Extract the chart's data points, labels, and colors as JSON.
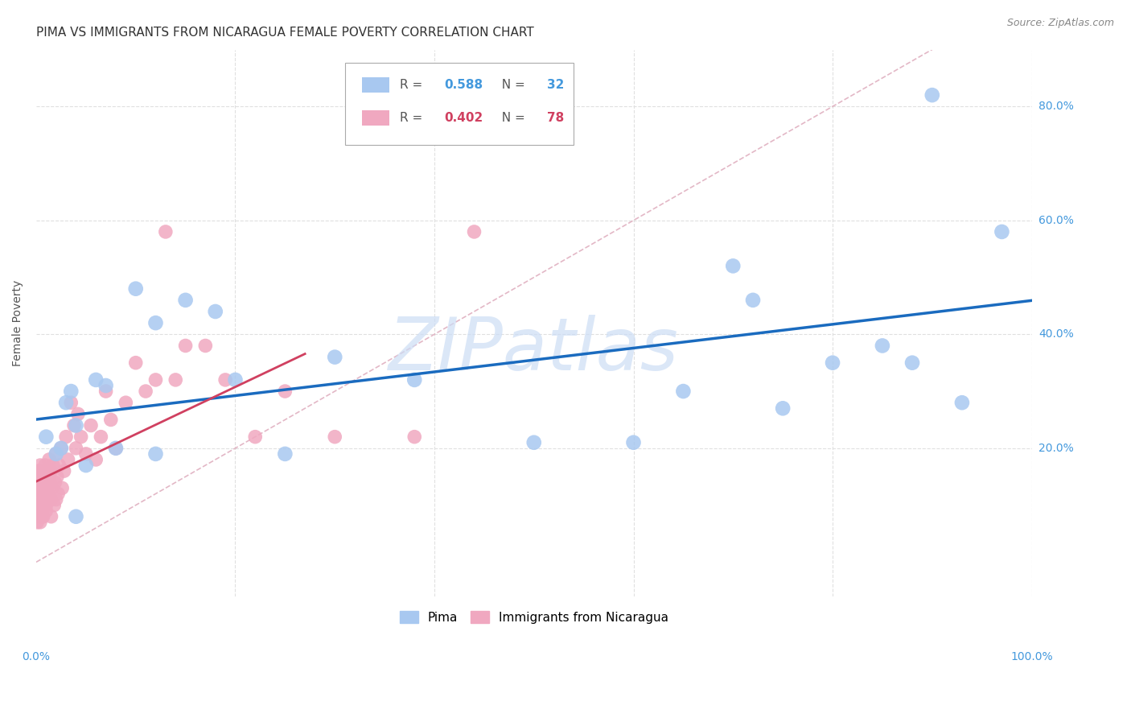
{
  "title": "PIMA VS IMMIGRANTS FROM NICARAGUA FEMALE POVERTY CORRELATION CHART",
  "source": "Source: ZipAtlas.com",
  "ylabel": "Female Poverty",
  "xlim": [
    0,
    1.0
  ],
  "ylim": [
    -0.06,
    0.9
  ],
  "pima_color": "#a8c8f0",
  "nicaragua_color": "#f0a8c0",
  "pima_line_color": "#1a6bbf",
  "nicaragua_line_color": "#d04060",
  "diagonal_color": "#e0b0c0",
  "pima_R": "0.588",
  "pima_N": "32",
  "nicaragua_R": "0.402",
  "nicaragua_N": "78",
  "pima_x": [
    0.01,
    0.02,
    0.025,
    0.03,
    0.035,
    0.04,
    0.05,
    0.06,
    0.07,
    0.08,
    0.1,
    0.12,
    0.15,
    0.18,
    0.2,
    0.12,
    0.25,
    0.3,
    0.38,
    0.5,
    0.6,
    0.65,
    0.7,
    0.72,
    0.75,
    0.8,
    0.85,
    0.88,
    0.9,
    0.93,
    0.97,
    0.04
  ],
  "pima_y": [
    0.22,
    0.19,
    0.2,
    0.28,
    0.3,
    0.24,
    0.17,
    0.32,
    0.31,
    0.2,
    0.48,
    0.19,
    0.46,
    0.44,
    0.32,
    0.42,
    0.19,
    0.36,
    0.32,
    0.21,
    0.21,
    0.3,
    0.52,
    0.46,
    0.27,
    0.35,
    0.38,
    0.35,
    0.82,
    0.28,
    0.58,
    0.08
  ],
  "nic_x": [
    0.001,
    0.002,
    0.002,
    0.003,
    0.003,
    0.004,
    0.004,
    0.004,
    0.005,
    0.005,
    0.005,
    0.006,
    0.006,
    0.007,
    0.007,
    0.007,
    0.008,
    0.008,
    0.008,
    0.009,
    0.009,
    0.01,
    0.01,
    0.01,
    0.012,
    0.012,
    0.013,
    0.014,
    0.015,
    0.015,
    0.016,
    0.017,
    0.018,
    0.019,
    0.02,
    0.021,
    0.022,
    0.023,
    0.025,
    0.026,
    0.028,
    0.03,
    0.032,
    0.035,
    0.038,
    0.04,
    0.042,
    0.045,
    0.05,
    0.055,
    0.06,
    0.065,
    0.07,
    0.075,
    0.08,
    0.09,
    0.1,
    0.11,
    0.12,
    0.13,
    0.14,
    0.15,
    0.17,
    0.19,
    0.22,
    0.25,
    0.3,
    0.38,
    0.44,
    0.001,
    0.002,
    0.003,
    0.004,
    0.006,
    0.008,
    0.01,
    0.015,
    0.02
  ],
  "nic_y": [
    0.13,
    0.1,
    0.16,
    0.12,
    0.15,
    0.09,
    0.14,
    0.17,
    0.11,
    0.13,
    0.16,
    0.1,
    0.14,
    0.12,
    0.16,
    0.08,
    0.15,
    0.13,
    0.11,
    0.14,
    0.17,
    0.13,
    0.16,
    0.1,
    0.15,
    0.12,
    0.18,
    0.14,
    0.11,
    0.16,
    0.13,
    0.17,
    0.1,
    0.14,
    0.19,
    0.15,
    0.12,
    0.17,
    0.2,
    0.13,
    0.16,
    0.22,
    0.18,
    0.28,
    0.24,
    0.2,
    0.26,
    0.22,
    0.19,
    0.24,
    0.18,
    0.22,
    0.3,
    0.25,
    0.2,
    0.28,
    0.35,
    0.3,
    0.32,
    0.58,
    0.32,
    0.38,
    0.38,
    0.32,
    0.22,
    0.3,
    0.22,
    0.22,
    0.58,
    0.07,
    0.08,
    0.09,
    0.07,
    0.08,
    0.1,
    0.09,
    0.08,
    0.11
  ],
  "background_color": "#ffffff",
  "grid_color": "#e0e0e0",
  "watermark_color": "#ccddf5",
  "watermark_fontsize": 65
}
